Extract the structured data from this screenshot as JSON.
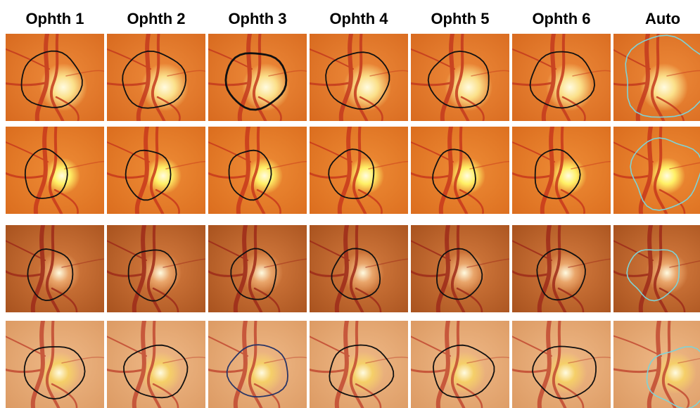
{
  "columns": [
    "Ophth 1",
    "Ophth 2",
    "Ophth 3",
    "Ophth 4",
    "Ophth 5",
    "Ophth 6",
    "Auto"
  ],
  "colors": {
    "expert_contour": "#111111",
    "expert3_row4_contour": "#2a3566",
    "auto_contour": "#7fd3d6",
    "row_palettes": [
      {
        "bg1": "#ed8a3a",
        "bg2": "#d86a1f",
        "disc": "#fbe08a",
        "vessel": "#c43a1e"
      },
      {
        "bg1": "#ee8c36",
        "bg2": "#db6d1e",
        "disc": "#fff066",
        "vessel": "#c8391c"
      },
      {
        "bg1": "#d57c3f",
        "bg2": "#a8521e",
        "disc": "#e9a56a",
        "vessel": "#9e2b1a"
      },
      {
        "bg1": "#efb987",
        "bg2": "#dc9a63",
        "disc": "#f5cf68",
        "vessel": "#c24a32"
      }
    ]
  },
  "grid": {
    "rows": 4,
    "cols": 7
  }
}
